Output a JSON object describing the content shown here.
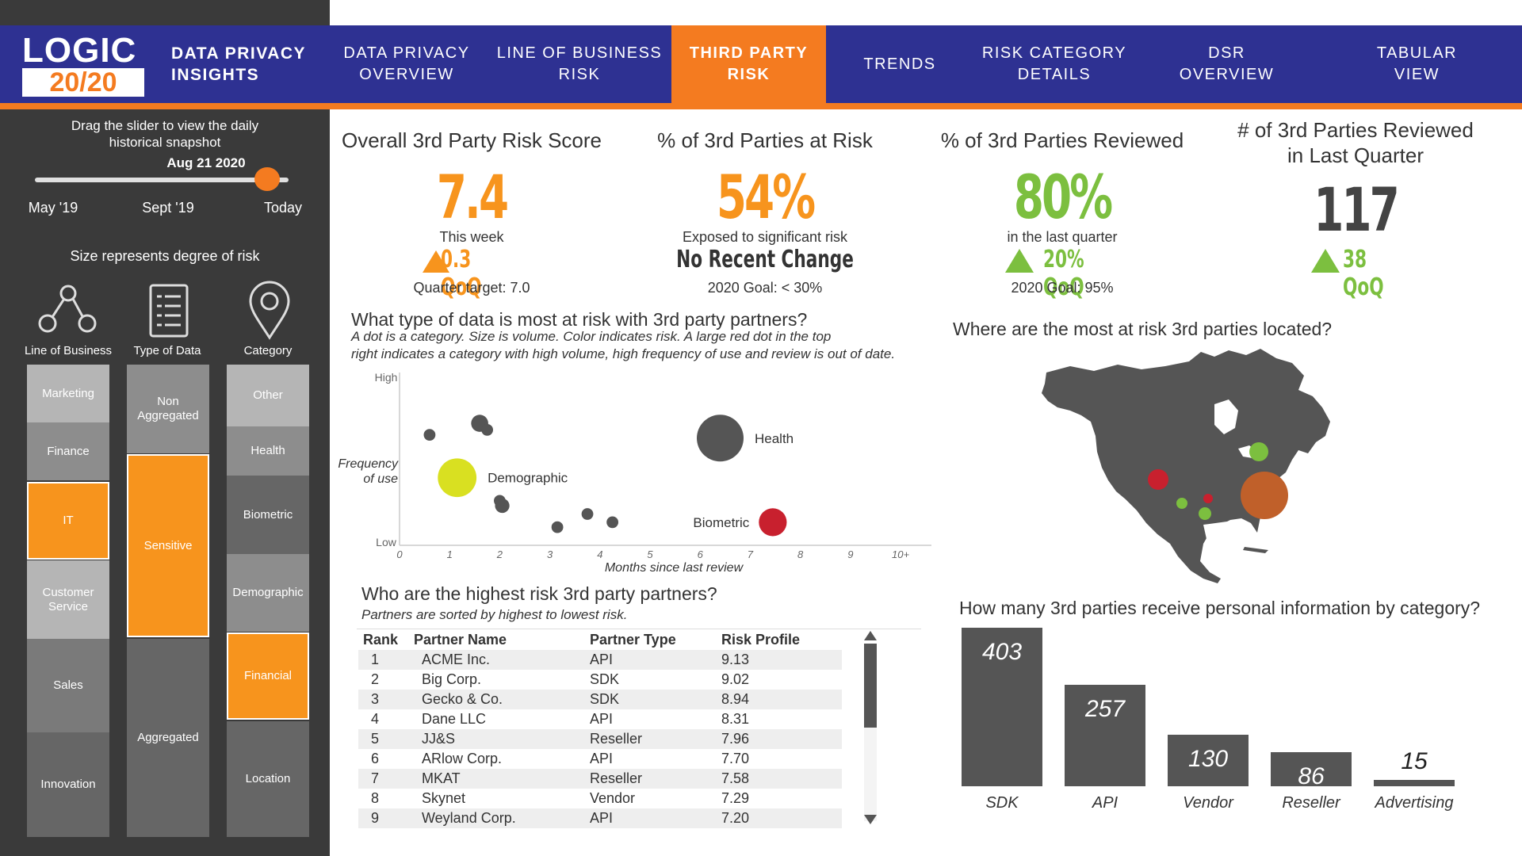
{
  "app": {
    "logo_top": "LOGIC",
    "logo_bottom": "20/20",
    "title_line1": "DATA PRIVACY",
    "title_line2": "INSIGHTS"
  },
  "tabs": [
    {
      "line1": "DATA PRIVACY",
      "line2": "OVERVIEW"
    },
    {
      "line1": "LINE OF BUSINESS",
      "line2": "RISK"
    },
    {
      "line1": "THIRD PARTY",
      "line2": "RISK"
    },
    {
      "line1": "TRENDS",
      "line2": ""
    },
    {
      "line1": "RISK CATEGORY",
      "line2": "DETAILS"
    },
    {
      "line1": "DSR",
      "line2": "OVERVIEW"
    },
    {
      "line1": "TABULAR",
      "line2": "VIEW"
    }
  ],
  "slider": {
    "instruction1": "Drag the slider to view the daily",
    "instruction2": "historical snapshot",
    "current": "Aug 21 2020",
    "labels": [
      "May '19",
      "Sept '19",
      "Today"
    ],
    "position": 0.95
  },
  "size_note": "Size represents degree of risk",
  "columns": {
    "lob": {
      "label": "Line of Business",
      "icon": "network-nodes-icon",
      "blocks": [
        "Marketing",
        "Finance",
        "IT",
        "Customer\nService",
        "Sales",
        "Innovation"
      ]
    },
    "data": {
      "label": "Type of Data",
      "icon": "checklist-icon",
      "blocks": [
        "Non\nAggregated",
        "Sensitive",
        "Aggregated"
      ]
    },
    "category": {
      "label": "Category",
      "icon": "location-pin-icon",
      "blocks": [
        "Other",
        "Health",
        "Biometric",
        "Demographic",
        "Financial",
        "Location"
      ]
    }
  },
  "kpis": {
    "score": {
      "title": "Overall 3rd Party Risk Score",
      "value": "7.4",
      "sub": "This week",
      "change": "0.3 QoQ",
      "footer": "Quarter target: 7.0"
    },
    "at_risk": {
      "title": "% of 3rd Parties at Risk",
      "value": "54%",
      "sub": "Exposed to significant risk",
      "change": "No Recent Change",
      "footer": "2020 Goal: < 30%"
    },
    "reviewed": {
      "title": "% of 3rd Parties Reviewed",
      "value": "80%",
      "sub": "in the last quarter",
      "change": "20% QoQ",
      "footer": "2020 Goal: 95%"
    },
    "reviewed_q": {
      "title1": "# of 3rd Parties Reviewed",
      "title2": "in Last Quarter",
      "value": "117",
      "change": "38 QoQ"
    }
  },
  "colors": {
    "orange": "#f47b20",
    "green": "#7cbf3f",
    "navy": "#2e3192",
    "red": "#c8202e",
    "yellow": "#d9e021",
    "gray": "#555555"
  },
  "scatter": {
    "title": "What type of data is most at risk with 3rd party partners?",
    "sub1": "A dot is a category. Size is volume. Color indicates risk. A large red dot in the top",
    "sub2": "right indicates a category with high volume, high frequency of use and review is out of date.",
    "ylabel1": "Frequency",
    "ylabel2": "of use",
    "y_high": "High",
    "y_low": "Low",
    "xlabel": "Months since last review",
    "xticks": [
      "0",
      "1",
      "2",
      "3",
      "4",
      "5",
      "6",
      "7",
      "8",
      "9",
      "10+"
    ]
  },
  "chart_data": [
    {
      "type": "scatter",
      "x_ticks": [
        "0",
        "1",
        "2",
        "3",
        "4",
        "5",
        "6",
        "7",
        "8",
        "9",
        "10+"
      ],
      "xlabel": "Months since last review",
      "ylabel": "Frequency of use",
      "xlim": [
        0,
        10.5
      ],
      "ylim": [
        0,
        1
      ],
      "points": [
        {
          "x": 0.6,
          "y": 0.67,
          "size": 1,
          "color": "#555555",
          "label": ""
        },
        {
          "x": 1.6,
          "y": 0.74,
          "size": 2,
          "color": "#555555",
          "label": ""
        },
        {
          "x": 1.75,
          "y": 0.7,
          "size": 1,
          "color": "#555555",
          "label": ""
        },
        {
          "x": 1.15,
          "y": 0.41,
          "size": 6,
          "color": "#d9e021",
          "label": "Demographic"
        },
        {
          "x": 2.05,
          "y": 0.24,
          "size": 1.5,
          "color": "#555555",
          "label": ""
        },
        {
          "x": 2.0,
          "y": 0.27,
          "size": 1,
          "color": "#555555",
          "label": ""
        },
        {
          "x": 3.15,
          "y": 0.11,
          "size": 1,
          "color": "#555555",
          "label": ""
        },
        {
          "x": 3.75,
          "y": 0.19,
          "size": 1,
          "color": "#555555",
          "label": ""
        },
        {
          "x": 4.25,
          "y": 0.14,
          "size": 1,
          "color": "#555555",
          "label": ""
        },
        {
          "x": 6.4,
          "y": 0.65,
          "size": 7.5,
          "color": "#555555",
          "label": "Health"
        },
        {
          "x": 7.45,
          "y": 0.14,
          "size": 4,
          "color": "#c8202e",
          "label": "Biometric"
        }
      ]
    },
    {
      "type": "bar",
      "title": "How many 3rd parties receive personal information by category?",
      "categories": [
        "SDK",
        "API",
        "Vendor",
        "Reseller",
        "Advertising"
      ],
      "values": [
        403,
        257,
        130,
        86,
        15
      ],
      "ylim": [
        0,
        403
      ]
    }
  ],
  "map": {
    "title": "Where are the most at risk 3rd parties located?",
    "dots": [
      {
        "name": "west-coast",
        "color": "#c8202e"
      },
      {
        "name": "great-lakes",
        "color": "#7cbf3f"
      },
      {
        "name": "southwest",
        "color": "#7cbf3f"
      },
      {
        "name": "texas",
        "color": "#7cbf3f"
      },
      {
        "name": "central",
        "color": "#c8202e"
      },
      {
        "name": "southeast",
        "color": "#c0602a"
      }
    ]
  },
  "partners": {
    "title": "Who are the highest risk 3rd party partners?",
    "sub": "Partners are sorted by highest to lowest risk.",
    "headers": [
      "Rank",
      "Partner Name",
      "Partner Type",
      "Risk Profile"
    ],
    "rows": [
      [
        "1",
        "ACME Inc.",
        "API",
        "9.13"
      ],
      [
        "2",
        "Big Corp.",
        "SDK",
        "9.02"
      ],
      [
        "3",
        "Gecko & Co.",
        "SDK",
        "8.94"
      ],
      [
        "4",
        "Dane LLC",
        "API",
        "8.31"
      ],
      [
        "5",
        "JJ&S",
        "Reseller",
        "7.96"
      ],
      [
        "6",
        "ARlow Corp.",
        "API",
        "7.70"
      ],
      [
        "7",
        "MKAT",
        "Reseller",
        "7.58"
      ],
      [
        "8",
        "Skynet",
        "Vendor",
        "7.29"
      ],
      [
        "9",
        "Weyland Corp.",
        "API",
        "7.20"
      ]
    ]
  }
}
